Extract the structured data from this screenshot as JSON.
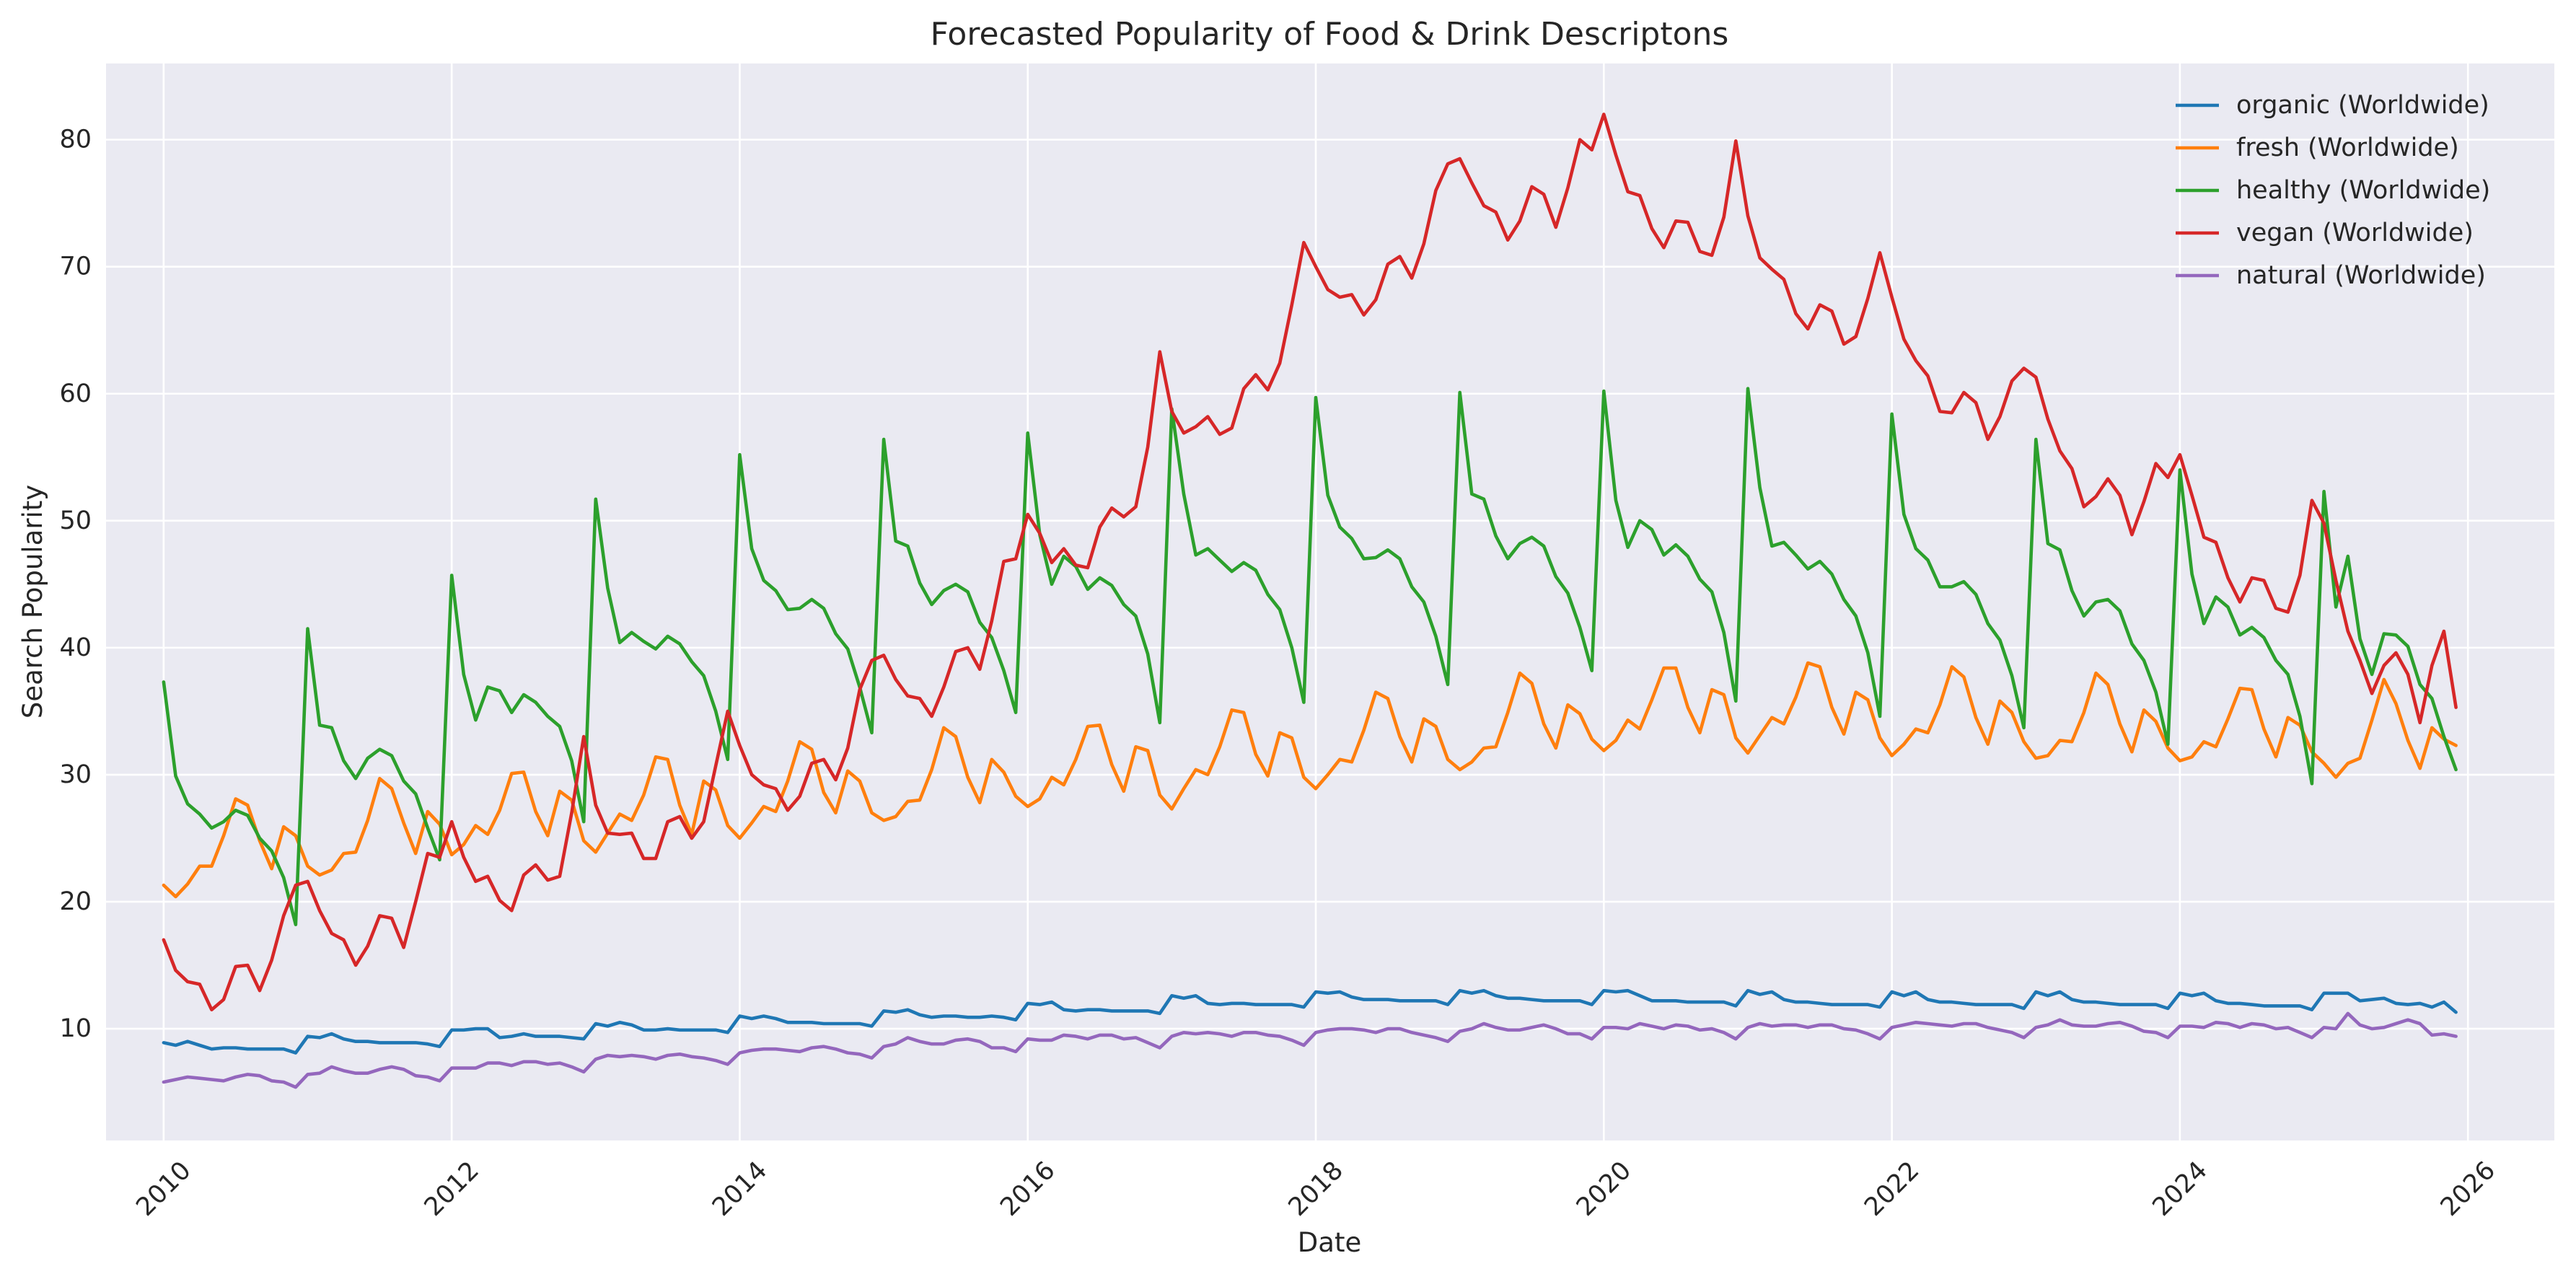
{
  "chart_data": {
    "type": "line",
    "title": "Forecasted Popularity of Food & Drink Descriptons",
    "xlabel": "Date",
    "ylabel": "Search Popularity",
    "x_range": [
      2009.6,
      2026.6
    ],
    "ylim": [
      1.2,
      86.0
    ],
    "x_ticks": [
      "2010",
      "2012",
      "2014",
      "2016",
      "2018",
      "2020",
      "2022",
      "2024",
      "2026"
    ],
    "y_ticks": [
      "10",
      "20",
      "30",
      "40",
      "50",
      "60",
      "70",
      "80"
    ],
    "grid": true,
    "legend_position": "top-right",
    "x_start": "2010-01",
    "x_end": "2025-12",
    "x_step": "monthly",
    "series": [
      {
        "name": "organic (Worldwide)",
        "color": "#1f77b4",
        "values": [
          8.9,
          8.7,
          9.0,
          8.7,
          8.4,
          8.5,
          8.5,
          8.4,
          8.4,
          8.4,
          8.4,
          8.1,
          9.4,
          9.3,
          9.6,
          9.2,
          9.0,
          9.0,
          8.9,
          8.9,
          8.9,
          8.9,
          8.8,
          8.6,
          9.9,
          9.9,
          10.0,
          10.0,
          9.3,
          9.4,
          9.6,
          9.4,
          9.4,
          9.4,
          9.3,
          9.2,
          10.4,
          10.2,
          10.5,
          10.3,
          9.9,
          9.9,
          10.0,
          9.9,
          9.9,
          9.9,
          9.9,
          9.7,
          11.0,
          10.8,
          11.0,
          10.8,
          10.5,
          10.5,
          10.5,
          10.4,
          10.4,
          10.4,
          10.4,
          10.2,
          11.4,
          11.3,
          11.5,
          11.1,
          10.9,
          11.0,
          11.0,
          10.9,
          10.9,
          11.0,
          10.9,
          10.7,
          12.0,
          11.9,
          12.1,
          11.5,
          11.4,
          11.5,
          11.5,
          11.4,
          11.4,
          11.4,
          11.4,
          11.2,
          12.6,
          12.4,
          12.6,
          12.0,
          11.9,
          12.0,
          12.0,
          11.9,
          11.9,
          11.9,
          11.9,
          11.7,
          12.9,
          12.8,
          12.9,
          12.5,
          12.3,
          12.3,
          12.3,
          12.2,
          12.2,
          12.2,
          12.2,
          11.9,
          13.0,
          12.8,
          13.0,
          12.6,
          12.4,
          12.4,
          12.3,
          12.2,
          12.2,
          12.2,
          12.2,
          11.9,
          13.0,
          12.9,
          13.0,
          12.6,
          12.2,
          12.2,
          12.2,
          12.1,
          12.1,
          12.1,
          12.1,
          11.8,
          13.0,
          12.7,
          12.9,
          12.3,
          12.1,
          12.1,
          12.0,
          11.9,
          11.9,
          11.9,
          11.9,
          11.7,
          12.9,
          12.6,
          12.9,
          12.3,
          12.1,
          12.1,
          12.0,
          11.9,
          11.9,
          11.9,
          11.9,
          11.6,
          12.9,
          12.6,
          12.9,
          12.3,
          12.1,
          12.1,
          12.0,
          11.9,
          11.9,
          11.9,
          11.9,
          11.6,
          12.8,
          12.6,
          12.8,
          12.2,
          12.0,
          12.0,
          11.9,
          11.8,
          11.8,
          11.8,
          11.8,
          11.5,
          12.8,
          12.8,
          12.8,
          12.2,
          12.3,
          12.4,
          12.0,
          11.9,
          12.0,
          11.7,
          12.1,
          11.3
        ]
      },
      {
        "name": "fresh (Worldwide)",
        "color": "#ff7f0e",
        "values": [
          21.3,
          20.4,
          21.4,
          22.8,
          22.8,
          25.2,
          28.1,
          27.6,
          24.8,
          22.6,
          25.9,
          25.2,
          22.8,
          22.1,
          22.5,
          23.8,
          23.9,
          26.4,
          29.7,
          28.9,
          26.2,
          23.8,
          27.1,
          26.1,
          23.7,
          24.5,
          26.0,
          25.3,
          27.2,
          30.1,
          30.2,
          27.1,
          25.2,
          28.7,
          28.0,
          24.8,
          23.9,
          25.4,
          26.9,
          26.4,
          28.4,
          31.4,
          31.2,
          27.6,
          25.3,
          29.5,
          28.8,
          26.0,
          25.0,
          26.2,
          27.5,
          27.1,
          29.5,
          32.6,
          32.0,
          28.6,
          27.0,
          30.3,
          29.5,
          27.0,
          26.4,
          26.7,
          27.9,
          28.0,
          30.4,
          33.7,
          33.0,
          29.8,
          27.8,
          31.2,
          30.2,
          28.3,
          27.5,
          28.1,
          29.8,
          29.2,
          31.2,
          33.8,
          33.9,
          30.8,
          28.7,
          32.2,
          31.9,
          28.4,
          27.3,
          28.9,
          30.4,
          30.0,
          32.2,
          35.1,
          34.9,
          31.6,
          29.9,
          33.3,
          32.9,
          29.8,
          28.9,
          30.0,
          31.2,
          31.0,
          33.5,
          36.5,
          36.0,
          33.0,
          31.0,
          34.4,
          33.8,
          31.2,
          30.4,
          31.0,
          32.1,
          32.2,
          34.9,
          38.0,
          37.2,
          34.0,
          32.1,
          35.5,
          34.8,
          32.8,
          31.9,
          32.7,
          34.3,
          33.6,
          35.9,
          38.4,
          38.4,
          35.3,
          33.3,
          36.7,
          36.3,
          32.9,
          31.7,
          33.1,
          34.5,
          34.0,
          36.1,
          38.8,
          38.5,
          35.3,
          33.2,
          36.5,
          35.9,
          32.9,
          31.5,
          32.4,
          33.6,
          33.3,
          35.5,
          38.5,
          37.7,
          34.5,
          32.4,
          35.8,
          34.9,
          32.6,
          31.3,
          31.5,
          32.7,
          32.6,
          34.9,
          38.0,
          37.1,
          34.0,
          31.8,
          35.1,
          34.2,
          32.1,
          31.1,
          31.4,
          32.6,
          32.2,
          34.4,
          36.8,
          36.7,
          33.6,
          31.4,
          34.5,
          33.9,
          31.8,
          30.9,
          29.8,
          30.9,
          31.3,
          34.3,
          37.5,
          35.6,
          32.7,
          30.5,
          33.7,
          32.8,
          32.3
        ]
      },
      {
        "name": "healthy (Worldwide)",
        "color": "#2ca02c",
        "values": [
          37.3,
          29.9,
          27.7,
          26.9,
          25.8,
          26.3,
          27.2,
          26.8,
          25.0,
          24.0,
          21.9,
          18.2,
          41.5,
          33.9,
          33.7,
          31.1,
          29.7,
          31.3,
          32.0,
          31.5,
          29.5,
          28.5,
          25.8,
          23.3,
          45.7,
          37.9,
          34.3,
          36.9,
          36.6,
          34.9,
          36.3,
          35.7,
          34.6,
          33.8,
          31.1,
          26.3,
          51.7,
          44.7,
          40.4,
          41.2,
          40.5,
          39.9,
          40.9,
          40.3,
          38.9,
          37.8,
          35.0,
          31.2,
          55.2,
          47.8,
          45.3,
          44.5,
          43.0,
          43.1,
          43.8,
          43.1,
          41.1,
          39.9,
          36.9,
          33.3,
          56.4,
          48.4,
          48.0,
          45.1,
          43.4,
          44.5,
          45.0,
          44.4,
          42.0,
          40.8,
          38.2,
          34.9,
          56.9,
          48.9,
          45.0,
          47.2,
          46.4,
          44.6,
          45.5,
          44.9,
          43.4,
          42.5,
          39.5,
          34.1,
          58.8,
          52.1,
          47.3,
          47.8,
          46.9,
          46.0,
          46.7,
          46.1,
          44.2,
          43.0,
          40.0,
          35.7,
          59.7,
          52.0,
          49.5,
          48.6,
          47.0,
          47.1,
          47.7,
          47.0,
          44.8,
          43.6,
          40.9,
          37.1,
          60.1,
          52.1,
          51.7,
          48.8,
          47.0,
          48.2,
          48.7,
          48.0,
          45.6,
          44.3,
          41.6,
          38.2,
          60.2,
          51.6,
          47.9,
          50.0,
          49.3,
          47.3,
          48.1,
          47.2,
          45.4,
          44.4,
          41.2,
          35.8,
          60.4,
          52.6,
          48.0,
          48.3,
          47.3,
          46.2,
          46.8,
          45.8,
          43.8,
          42.5,
          39.6,
          34.6,
          58.4,
          50.5,
          47.8,
          46.9,
          44.8,
          44.8,
          45.2,
          44.2,
          41.9,
          40.6,
          37.8,
          33.7,
          56.4,
          48.2,
          47.7,
          44.5,
          42.5,
          43.6,
          43.8,
          42.9,
          40.3,
          39.0,
          36.5,
          32.4,
          54.0,
          45.8,
          41.9,
          44.0,
          43.2,
          41.0,
          41.6,
          40.8,
          39.0,
          37.9,
          34.6,
          29.3,
          52.3,
          43.2,
          47.2,
          40.7,
          37.9,
          41.1,
          41.0,
          40.1,
          37.1,
          36.0,
          33.0,
          30.4
        ]
      },
      {
        "name": "vegan (Worldwide)",
        "color": "#d62728",
        "values": [
          17.0,
          14.6,
          13.7,
          13.5,
          11.5,
          12.3,
          14.9,
          15.0,
          13.0,
          15.4,
          18.9,
          21.3,
          21.6,
          19.3,
          17.5,
          17.0,
          15.0,
          16.5,
          18.9,
          18.7,
          16.4,
          20.0,
          23.8,
          23.5,
          26.3,
          23.5,
          21.6,
          22.0,
          20.1,
          19.3,
          22.1,
          22.9,
          21.7,
          22.0,
          27.0,
          33.0,
          27.6,
          25.4,
          25.3,
          25.4,
          23.4,
          23.4,
          26.3,
          26.7,
          25.0,
          26.3,
          30.7,
          35.0,
          32.3,
          30.0,
          29.2,
          28.9,
          27.2,
          28.3,
          30.9,
          31.2,
          29.6,
          32.1,
          36.7,
          39.0,
          39.4,
          37.5,
          36.2,
          36.0,
          34.6,
          36.9,
          39.7,
          40.0,
          38.3,
          42.1,
          46.8,
          47.0,
          50.5,
          49.0,
          46.7,
          47.8,
          46.5,
          46.3,
          49.5,
          51.0,
          50.3,
          51.1,
          55.8,
          63.3,
          58.6,
          56.9,
          57.4,
          58.2,
          56.8,
          57.3,
          60.4,
          61.5,
          60.3,
          62.4,
          67.0,
          71.9,
          70.0,
          68.2,
          67.6,
          67.8,
          66.2,
          67.4,
          70.2,
          70.8,
          69.1,
          71.8,
          76.0,
          78.1,
          78.5,
          76.6,
          74.8,
          74.3,
          72.1,
          73.6,
          76.3,
          75.7,
          73.1,
          76.2,
          80.0,
          79.2,
          82.0,
          78.8,
          75.9,
          75.6,
          73.0,
          71.5,
          73.6,
          73.5,
          71.2,
          70.9,
          73.9,
          79.9,
          74.0,
          70.7,
          69.8,
          69.0,
          66.3,
          65.1,
          67.0,
          66.5,
          63.9,
          64.5,
          67.5,
          71.1,
          67.6,
          64.3,
          62.6,
          61.4,
          58.6,
          58.5,
          60.1,
          59.3,
          56.4,
          58.2,
          61.0,
          62.0,
          61.3,
          58.0,
          55.5,
          54.1,
          51.1,
          51.9,
          53.3,
          52.0,
          48.9,
          51.5,
          54.5,
          53.4,
          55.2,
          52.0,
          48.7,
          48.3,
          45.5,
          43.6,
          45.5,
          45.3,
          43.1,
          42.8,
          45.7,
          51.6,
          49.8,
          45.3,
          41.3,
          39.0,
          36.4,
          38.6,
          39.6,
          37.9,
          34.1,
          38.6,
          41.3,
          35.3
        ]
      },
      {
        "name": "natural (Worldwide)",
        "color": "#9467bd",
        "values": [
          5.8,
          6.0,
          6.2,
          6.1,
          6.0,
          5.9,
          6.2,
          6.4,
          6.3,
          5.9,
          5.8,
          5.4,
          6.4,
          6.5,
          7.0,
          6.7,
          6.5,
          6.5,
          6.8,
          7.0,
          6.8,
          6.3,
          6.2,
          5.9,
          6.9,
          6.9,
          6.9,
          7.3,
          7.3,
          7.1,
          7.4,
          7.4,
          7.2,
          7.3,
          7.0,
          6.6,
          7.6,
          7.9,
          7.8,
          7.9,
          7.8,
          7.6,
          7.9,
          8.0,
          7.8,
          7.7,
          7.5,
          7.2,
          8.1,
          8.3,
          8.4,
          8.4,
          8.3,
          8.2,
          8.5,
          8.6,
          8.4,
          8.1,
          8.0,
          7.7,
          8.6,
          8.8,
          9.3,
          9.0,
          8.8,
          8.8,
          9.1,
          9.2,
          9.0,
          8.5,
          8.5,
          8.2,
          9.2,
          9.1,
          9.1,
          9.5,
          9.4,
          9.2,
          9.5,
          9.5,
          9.2,
          9.3,
          8.9,
          8.5,
          9.4,
          9.7,
          9.6,
          9.7,
          9.6,
          9.4,
          9.7,
          9.7,
          9.5,
          9.4,
          9.1,
          8.7,
          9.7,
          9.9,
          10.0,
          10.0,
          9.9,
          9.7,
          10.0,
          10.0,
          9.7,
          9.5,
          9.3,
          9.0,
          9.8,
          10.0,
          10.4,
          10.1,
          9.9,
          9.9,
          10.1,
          10.3,
          10.0,
          9.6,
          9.6,
          9.2,
          10.1,
          10.1,
          10.0,
          10.4,
          10.2,
          10.0,
          10.3,
          10.2,
          9.9,
          10.0,
          9.7,
          9.2,
          10.1,
          10.4,
          10.2,
          10.3,
          10.3,
          10.1,
          10.3,
          10.3,
          10.0,
          9.9,
          9.6,
          9.2,
          10.1,
          10.3,
          10.5,
          10.4,
          10.3,
          10.2,
          10.4,
          10.4,
          10.1,
          9.9,
          9.7,
          9.3,
          10.1,
          10.3,
          10.7,
          10.3,
          10.2,
          10.2,
          10.4,
          10.5,
          10.2,
          9.8,
          9.7,
          9.3,
          10.2,
          10.2,
          10.1,
          10.5,
          10.4,
          10.1,
          10.4,
          10.3,
          10.0,
          10.1,
          9.7,
          9.3,
          10.1,
          10.0,
          11.2,
          10.3,
          10.0,
          10.1,
          10.4,
          10.7,
          10.4,
          9.5,
          9.6,
          9.4
        ]
      }
    ]
  }
}
